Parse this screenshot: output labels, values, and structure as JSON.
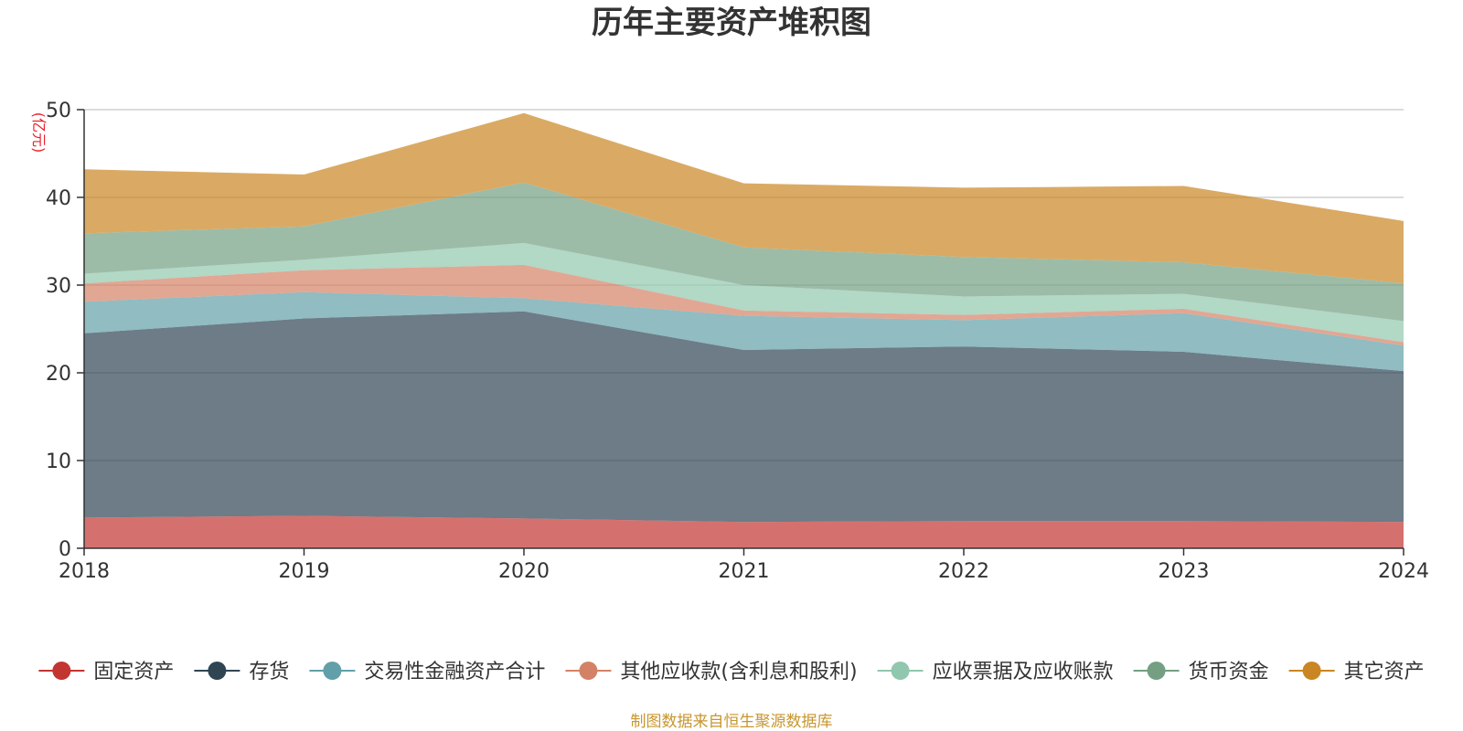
{
  "chart_data": {
    "type": "area",
    "stacked": true,
    "title": "历年主要资产堆积图",
    "unit_label": "(亿元)",
    "x": [
      "2018",
      "2019",
      "2020",
      "2021",
      "2022",
      "2023",
      "2024"
    ],
    "ylim": [
      0,
      50
    ],
    "yticks": [
      "0",
      "10",
      "20",
      "30",
      "40",
      "50"
    ],
    "grid": true,
    "legend_position": "bottom",
    "series": [
      {
        "name": "固定资产",
        "color": "#c23531",
        "values": [
          3.5,
          3.7,
          3.4,
          3.0,
          3.1,
          3.1,
          3.0
        ]
      },
      {
        "name": "存货",
        "color": "#2f4554",
        "values": [
          21.0,
          22.5,
          23.6,
          19.6,
          19.9,
          19.3,
          17.2
        ]
      },
      {
        "name": "交易性金融资产合计",
        "color": "#61a0a8",
        "values": [
          3.6,
          3.0,
          1.5,
          3.9,
          3.0,
          4.4,
          2.9
        ]
      },
      {
        "name": "其他应收款(含利息和股利)",
        "color": "#d48265",
        "values": [
          2.1,
          2.5,
          3.8,
          0.6,
          0.6,
          0.5,
          0.4
        ]
      },
      {
        "name": "应收票据及应收账款",
        "color": "#91c7ae",
        "values": [
          1.1,
          1.2,
          2.5,
          2.9,
          2.1,
          1.7,
          2.4
        ]
      },
      {
        "name": "货币资金",
        "color": "#749f83",
        "values": [
          4.6,
          3.8,
          6.9,
          4.3,
          4.5,
          3.6,
          4.3
        ]
      },
      {
        "name": "其它资产",
        "color": "#ca8622",
        "values": [
          7.3,
          5.9,
          7.9,
          7.3,
          7.9,
          8.7,
          7.1
        ]
      }
    ]
  },
  "source_text": "制图数据来自恒生聚源数据库",
  "colors": {
    "title": "#333333",
    "unit_label": "#e8212b",
    "source": "#c8962e",
    "grid": "#d0d0d0",
    "axis": "#333333"
  }
}
